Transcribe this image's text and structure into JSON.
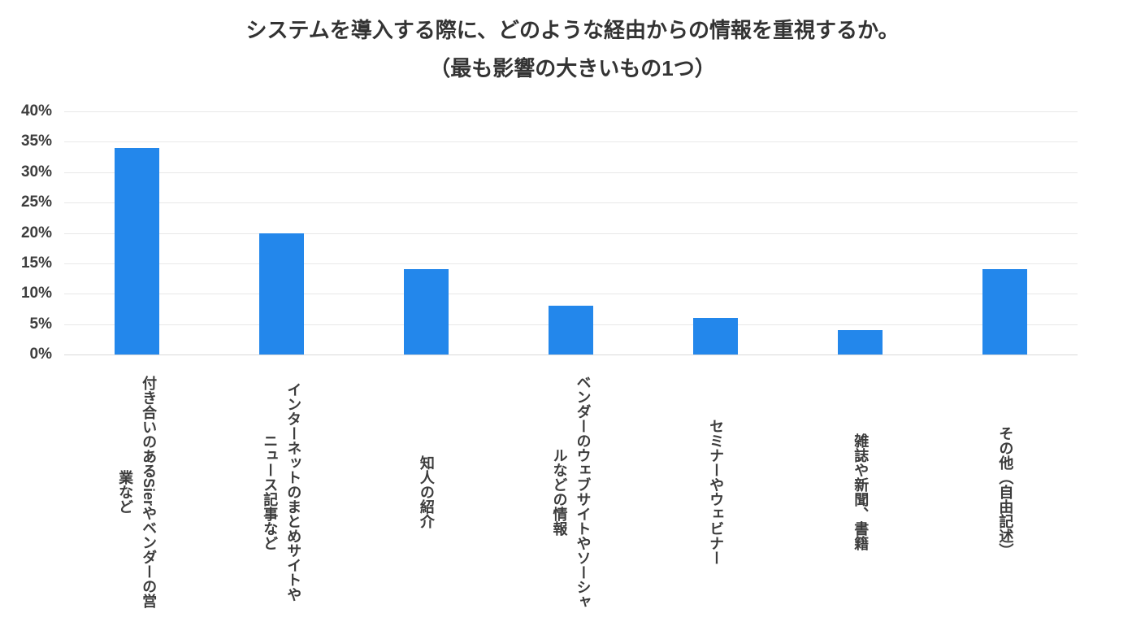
{
  "title": {
    "line1": "システムを導入する際に、どのような経由からの情報を重視するか。",
    "line2": "（最も影響の大きいもの1つ）"
  },
  "chart_data": {
    "type": "bar",
    "title": "システムを導入する際に、どのような経由からの情報を重視するか。（最も影響の大きいもの1つ）",
    "categories": [
      "付き合いのあるSierやベンダーの営業など",
      "インターネットのまとめサイトやニュース記事など",
      "知人の紹介",
      "ベンダーのウェブサイトやソーシャルなどの情報",
      "セミナーやウェビナー",
      "雑誌や新聞、書籍",
      "その他（自由記述）"
    ],
    "category_lines": [
      [
        "付き合いのあるSierやベンダーの営",
        "業など"
      ],
      [
        "インターネットのまとめサイトや",
        "ニュース記事など"
      ],
      [
        "知人の紹介"
      ],
      [
        "ベンダーのウェブサイトやソーシャ",
        "ルなどの情報"
      ],
      [
        "セミナーやウェビナー"
      ],
      [
        "雑誌や新聞、書籍"
      ],
      [
        "その他（自由記述）"
      ]
    ],
    "values": [
      34,
      20,
      14,
      8,
      6,
      4,
      14
    ],
    "unit": "%",
    "ylabel": "",
    "xlabel": "",
    "ylim": [
      0,
      40
    ],
    "ytick_step": 5,
    "yticks": [
      "0%",
      "5%",
      "10%",
      "15%",
      "20%",
      "25%",
      "30%",
      "35%",
      "40%"
    ],
    "grid": true,
    "legend": false,
    "bar_color": "#2387EB",
    "gridline_color": "#e8e8e8",
    "label_orientation": "vertical"
  }
}
